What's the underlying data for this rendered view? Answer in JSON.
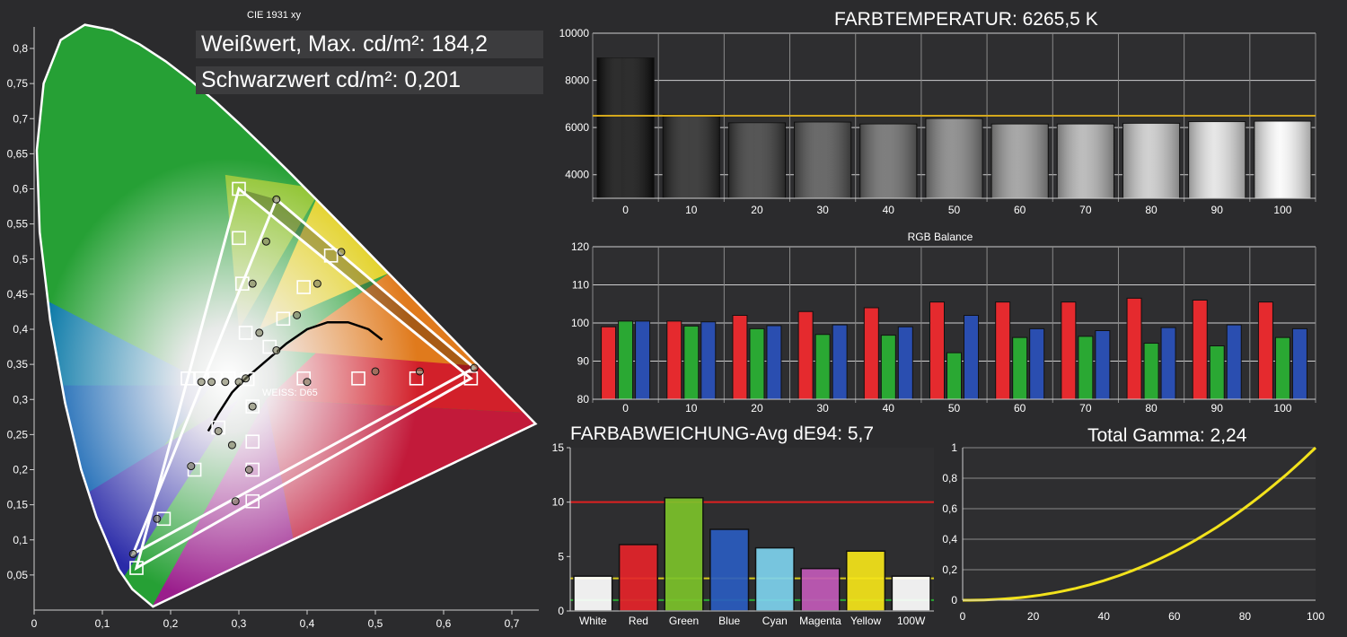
{
  "cie": {
    "title": "CIE 1931 xy",
    "white_max_label": "Weißwert, Max. cd/m²: 184,2",
    "black_label": "Schwarzwert cd/m²: 0,201",
    "weiss_label": "WEISS: D65",
    "x_ticks": [
      "0",
      "0,1",
      "0,2",
      "0,3",
      "0,4",
      "0,5",
      "0,6",
      "0,7"
    ],
    "y_ticks": [
      "0,05",
      "0,1",
      "0,15",
      "0,2",
      "0,25",
      "0,3",
      "0,35",
      "0,4",
      "0,45",
      "0,5",
      "0,55",
      "0,6",
      "0,65",
      "0,7",
      "0,75",
      "0,8"
    ]
  },
  "colortemp": {
    "title": "FARBTEMPERATUR: 6265,5 K",
    "y_ticks": [
      "4000",
      "6000",
      "8000",
      "10000"
    ],
    "categories": [
      "0",
      "10",
      "20",
      "30",
      "40",
      "50",
      "60",
      "70",
      "80",
      "90",
      "100"
    ]
  },
  "rgb": {
    "title": "RGB Balance",
    "y_ticks": [
      "80",
      "90",
      "100",
      "110",
      "120"
    ],
    "categories": [
      "0",
      "10",
      "20",
      "30",
      "40",
      "50",
      "60",
      "70",
      "80",
      "90",
      "100"
    ]
  },
  "deltae": {
    "title": "FARBABWEICHUNG-Avg dE94: 5,7",
    "y_ticks": [
      "0",
      "5",
      "10",
      "15"
    ],
    "categories": [
      "White",
      "Red",
      "Green",
      "Blue",
      "Cyan",
      "Magenta",
      "Yellow",
      "100W"
    ]
  },
  "gamma": {
    "title": "Total Gamma: 2,24",
    "x_ticks": [
      "0",
      "20",
      "40",
      "60",
      "80",
      "100"
    ],
    "y_ticks": [
      "0",
      "0,2",
      "0,4",
      "0,6",
      "0,8",
      "1"
    ]
  },
  "chart_data": [
    {
      "type": "scatter",
      "title": "CIE 1931 xy",
      "xlim": [
        0,
        0.75
      ],
      "ylim": [
        0,
        0.85
      ],
      "target_gamut": [
        [
          0.64,
          0.33
        ],
        [
          0.3,
          0.6
        ],
        [
          0.15,
          0.06
        ]
      ],
      "measured_gamut": [
        [
          0.645,
          0.345
        ],
        [
          0.355,
          0.585
        ],
        [
          0.145,
          0.08
        ]
      ],
      "target_points": [
        [
          0.64,
          0.33
        ],
        [
          0.56,
          0.33
        ],
        [
          0.475,
          0.33
        ],
        [
          0.395,
          0.33
        ],
        [
          0.3,
          0.6
        ],
        [
          0.3,
          0.53
        ],
        [
          0.305,
          0.465
        ],
        [
          0.31,
          0.395
        ],
        [
          0.15,
          0.06
        ],
        [
          0.19,
          0.13
        ],
        [
          0.235,
          0.2
        ],
        [
          0.27,
          0.26
        ],
        [
          0.435,
          0.505
        ],
        [
          0.395,
          0.46
        ],
        [
          0.365,
          0.415
        ],
        [
          0.345,
          0.375
        ],
        [
          0.32,
          0.155
        ],
        [
          0.32,
          0.2
        ],
        [
          0.32,
          0.24
        ],
        [
          0.32,
          0.29
        ],
        [
          0.225,
          0.33
        ],
        [
          0.245,
          0.33
        ],
        [
          0.265,
          0.33
        ],
        [
          0.285,
          0.33
        ],
        [
          0.3127,
          0.329
        ]
      ],
      "measured_points": [
        [
          0.645,
          0.345
        ],
        [
          0.565,
          0.34
        ],
        [
          0.5,
          0.34
        ],
        [
          0.4,
          0.325
        ],
        [
          0.355,
          0.585
        ],
        [
          0.34,
          0.525
        ],
        [
          0.32,
          0.465
        ],
        [
          0.33,
          0.395
        ],
        [
          0.145,
          0.08
        ],
        [
          0.18,
          0.13
        ],
        [
          0.23,
          0.205
        ],
        [
          0.27,
          0.255
        ],
        [
          0.45,
          0.51
        ],
        [
          0.415,
          0.465
        ],
        [
          0.385,
          0.42
        ],
        [
          0.355,
          0.37
        ],
        [
          0.295,
          0.155
        ],
        [
          0.315,
          0.2
        ],
        [
          0.29,
          0.235
        ],
        [
          0.32,
          0.29
        ],
        [
          0.245,
          0.325
        ],
        [
          0.26,
          0.325
        ],
        [
          0.28,
          0.325
        ],
        [
          0.3,
          0.325
        ],
        [
          0.31,
          0.33
        ]
      ]
    },
    {
      "type": "bar",
      "title": "FARBTEMPERATUR: 6265,5 K",
      "categories": [
        "0",
        "10",
        "20",
        "30",
        "40",
        "50",
        "60",
        "70",
        "80",
        "90",
        "100"
      ],
      "values": [
        8950,
        6550,
        6200,
        6230,
        6150,
        6380,
        6150,
        6150,
        6180,
        6250,
        6270
      ],
      "reference": 6500,
      "ylim": [
        3000,
        10000
      ]
    },
    {
      "type": "bar",
      "title": "RGB Balance",
      "categories": [
        "0",
        "10",
        "20",
        "30",
        "40",
        "50",
        "60",
        "70",
        "80",
        "90",
        "100"
      ],
      "series": [
        {
          "values": [
            99,
            100.5,
            102,
            103,
            104,
            105.5,
            105.5,
            105.5,
            106.5,
            106,
            105.5
          ]
        },
        {
          "values": [
            100.5,
            99.2,
            98.5,
            97,
            96.8,
            92.2,
            96.2,
            96.5,
            94.7,
            94,
            96.2
          ]
        },
        {
          "values": [
            100.5,
            100.3,
            99.3,
            99.5,
            99,
            102,
            98.5,
            98,
            98.8,
            99.5,
            98.5
          ]
        }
      ],
      "ylim": [
        80,
        120
      ]
    },
    {
      "type": "bar",
      "title": "FARBABWEICHUNG-Avg dE94: 5,7",
      "categories": [
        "White",
        "Red",
        "Green",
        "Blue",
        "Cyan",
        "Magenta",
        "Yellow",
        "100W"
      ],
      "values": [
        3.2,
        6.1,
        10.4,
        7.5,
        5.8,
        3.9,
        5.5,
        3.2
      ],
      "thresholds": [
        10,
        3,
        1
      ],
      "ylim": [
        0,
        15
      ]
    },
    {
      "type": "line",
      "title": "Total Gamma: 2,24",
      "gamma": 2.24,
      "xlim": [
        0,
        100
      ],
      "ylim": [
        0,
        1
      ]
    }
  ]
}
